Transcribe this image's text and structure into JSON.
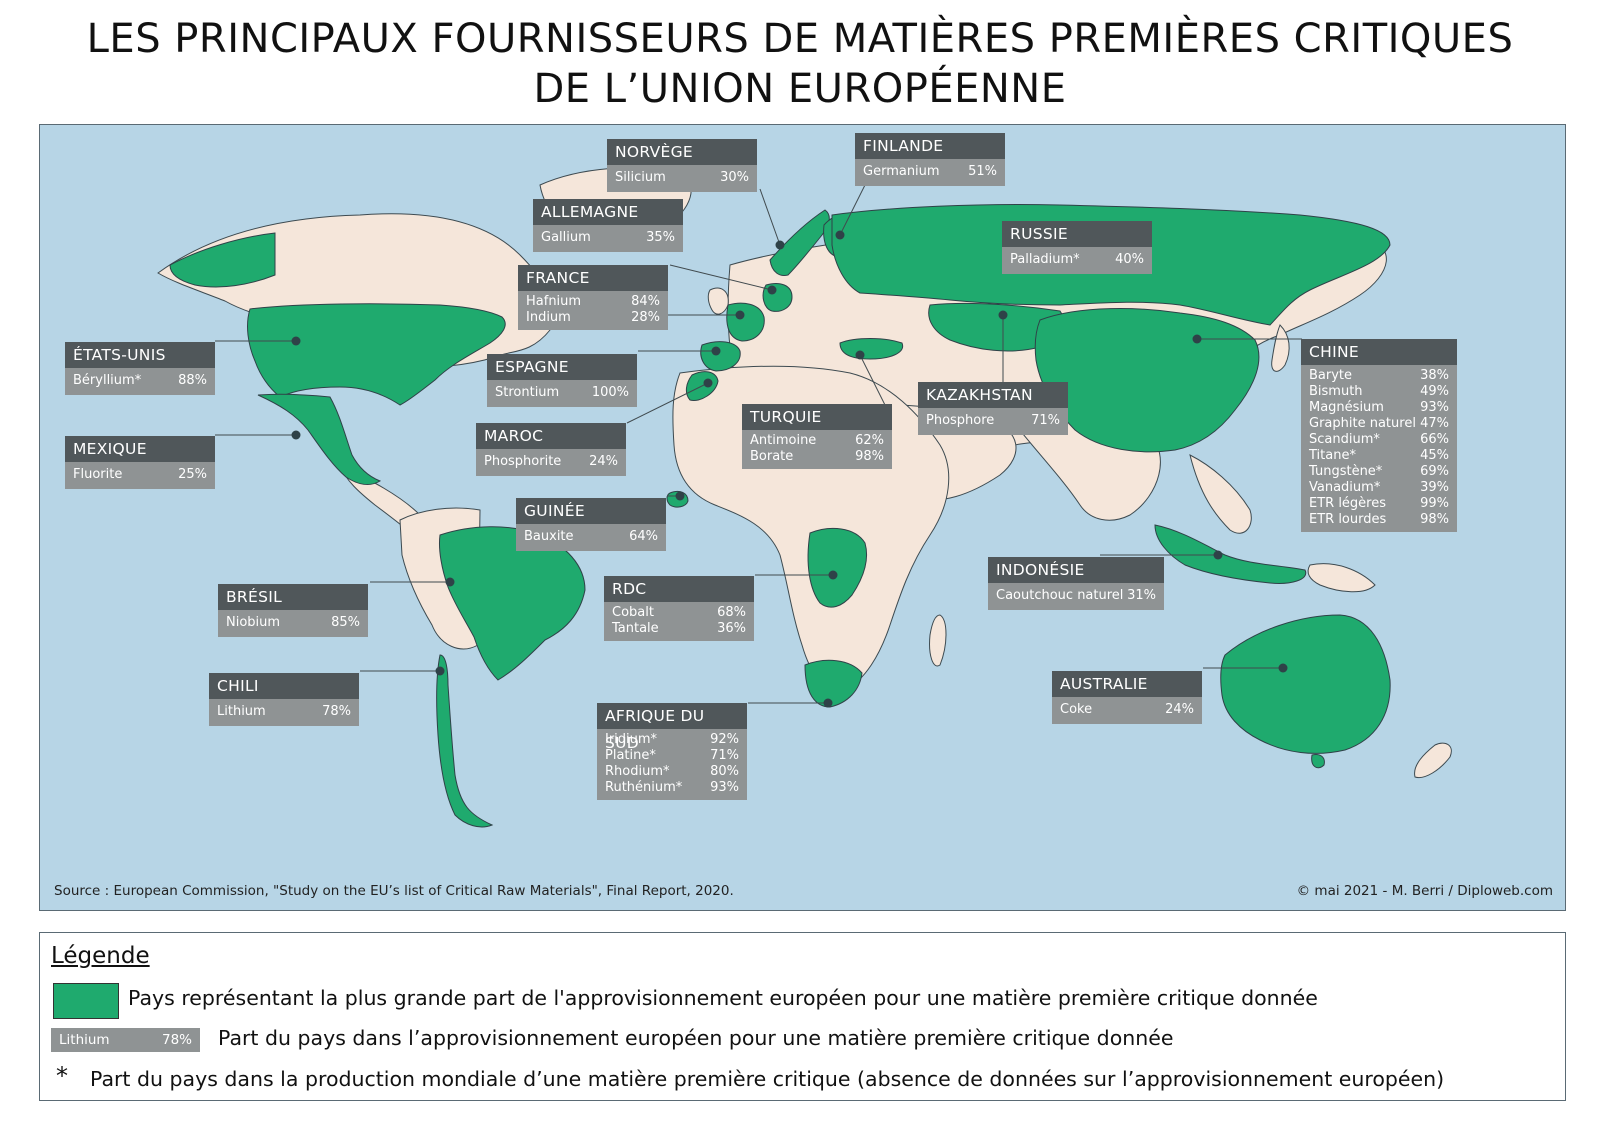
{
  "title_line1": "LES PRINCIPAUX FOURNISSEURS DE MATIÈRES PREMIÈRES CRITIQUES",
  "title_line2": "DE L’UNION EUROPÉENNE",
  "colors": {
    "ocean": "#b7d5e6",
    "land": "#f5e6da",
    "supplier": "#1faa6e",
    "box_header": "#50575a",
    "box_body": "#8f9394"
  },
  "countries": [
    {
      "name": "NORVÈGE",
      "materials": [
        {
          "name": "Silicium",
          "share": "30%"
        }
      ]
    },
    {
      "name": "FINLANDE",
      "materials": [
        {
          "name": "Germanium",
          "share": "51%"
        }
      ]
    },
    {
      "name": "ALLEMAGNE",
      "materials": [
        {
          "name": "Gallium",
          "share": "35%"
        }
      ]
    },
    {
      "name": "RUSSIE",
      "materials": [
        {
          "name": "Palladium*",
          "share": "40%"
        }
      ]
    },
    {
      "name": "FRANCE",
      "materials": [
        {
          "name": "Hafnium",
          "share": "84%"
        },
        {
          "name": "Indium",
          "share": "28%"
        }
      ]
    },
    {
      "name": "ÉTATS-UNIS",
      "materials": [
        {
          "name": "Béryllium*",
          "share": "88%"
        }
      ]
    },
    {
      "name": "ESPAGNE",
      "materials": [
        {
          "name": "Strontium",
          "share": "100%"
        }
      ]
    },
    {
      "name": "CHINE",
      "materials": [
        {
          "name": "Baryte",
          "share": "38%"
        },
        {
          "name": "Bismuth",
          "share": "49%"
        },
        {
          "name": "Magnésium",
          "share": "93%"
        },
        {
          "name": "Graphite naturel",
          "share": "47%"
        },
        {
          "name": "Scandium*",
          "share": "66%"
        },
        {
          "name": "Titane*",
          "share": "45%"
        },
        {
          "name": "Tungstène*",
          "share": "69%"
        },
        {
          "name": "Vanadium*",
          "share": "39%"
        },
        {
          "name": "ETR légères",
          "share": "99%"
        },
        {
          "name": "ETR lourdes",
          "share": "98%"
        }
      ]
    },
    {
      "name": "KAZAKHSTAN",
      "materials": [
        {
          "name": "Phosphore",
          "share": "71%"
        }
      ]
    },
    {
      "name": "TURQUIE",
      "materials": [
        {
          "name": "Antimoine",
          "share": "62%"
        },
        {
          "name": "Borate",
          "share": "98%"
        }
      ]
    },
    {
      "name": "MAROC",
      "materials": [
        {
          "name": "Phosphorite",
          "share": "24%"
        }
      ]
    },
    {
      "name": "MEXIQUE",
      "materials": [
        {
          "name": "Fluorite",
          "share": "25%"
        }
      ]
    },
    {
      "name": "GUINÉE",
      "materials": [
        {
          "name": "Bauxite",
          "share": "64%"
        }
      ]
    },
    {
      "name": "INDONÉSIE",
      "materials": [
        {
          "name": "Caoutchouc naturel",
          "share": "31%"
        }
      ]
    },
    {
      "name": "BRÉSIL",
      "materials": [
        {
          "name": "Niobium",
          "share": "85%"
        }
      ]
    },
    {
      "name": "RDC",
      "materials": [
        {
          "name": "Cobalt",
          "share": "68%"
        },
        {
          "name": "Tantale",
          "share": "36%"
        }
      ]
    },
    {
      "name": "CHILI",
      "materials": [
        {
          "name": "Lithium",
          "share": "78%"
        }
      ]
    },
    {
      "name": "AUSTRALIE",
      "materials": [
        {
          "name": "Coke",
          "share": "24%"
        }
      ]
    },
    {
      "name": "AFRIQUE DU SUD",
      "materials": [
        {
          "name": "Iridium*",
          "share": "92%"
        },
        {
          "name": "Platine*",
          "share": "71%"
        },
        {
          "name": "Rhodium*",
          "share": "80%"
        },
        {
          "name": "Ruthénium*",
          "share": "93%"
        }
      ]
    }
  ],
  "source": "Source : European Commission, \"Study on the EU’s list of Critical Raw Materials\", Final Report, 2020.",
  "credit": "© mai 2021 - M. Berri / Diploweb.com",
  "legend": {
    "title": "Légende",
    "supplier_text": "Pays représentant la plus grande part de l'approvisionnement européen pour une matière première critique donnée",
    "example_material": "Lithium",
    "example_share": "78%",
    "share_text": "Part du pays dans l’approvisionnement européen pour une matière première critique donnée",
    "asterisk": "*",
    "asterisk_text": "Part du pays dans la production mondiale d’une matière première critique (absence de données sur l’approvisionnement européen)"
  }
}
